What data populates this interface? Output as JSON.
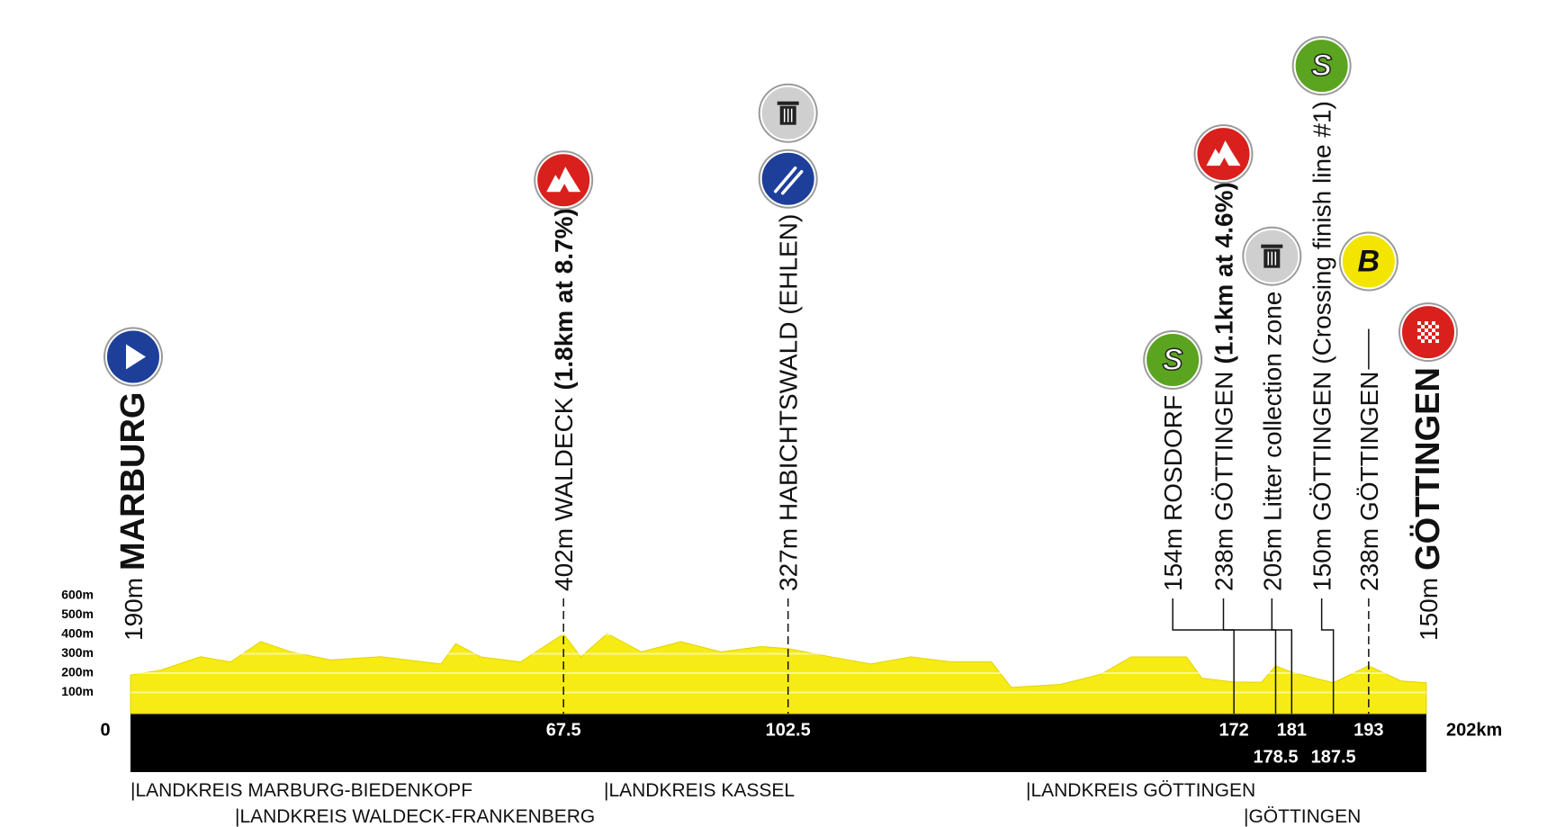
{
  "chart_data": {
    "type": "area",
    "x": [
      0,
      4.7,
      10.9,
      15.6,
      20.3,
      25,
      31.2,
      39,
      48.4,
      50.7,
      54.6,
      60.8,
      67.5,
      70.2,
      74.3,
      79.6,
      85.8,
      92,
      98.3,
      102.5,
      109.2,
      115.4,
      121.7,
      127.9,
      134.2,
      137.3,
      145,
      151.3,
      156,
      164.6,
      167,
      172,
      176.3,
      178.5,
      181,
      187.5,
      193,
      198,
      202
    ],
    "values": [
      190,
      215,
      285,
      258,
      363,
      310,
      268,
      285,
      247,
      352,
      284,
      258,
      402,
      284,
      405,
      310,
      363,
      310,
      337,
      327,
      284,
      247,
      284,
      258,
      258,
      126,
      142,
      195,
      284,
      284,
      174,
      154,
      153,
      238,
      205,
      150,
      238,
      160,
      150
    ],
    "color": "#f6eb14",
    "xlim": [
      0,
      202
    ],
    "xticks": [
      0,
      67.5,
      102.5,
      172,
      178.5,
      181,
      187.5,
      193,
      {
        "value": 202,
        "label": "202km"
      }
    ],
    "ylim": [
      0,
      600
    ],
    "yticks": [
      {
        "value": 100,
        "label": "100m"
      },
      {
        "value": 200,
        "label": "200m"
      },
      {
        "value": 300,
        "label": "300m"
      },
      {
        "value": 400,
        "label": "400m"
      },
      {
        "value": 500,
        "label": "500m"
      },
      {
        "value": 600,
        "label": "600m"
      }
    ],
    "grid": true,
    "waypoints": [
      {
        "km": 0,
        "elevation": "190m",
        "name": "MARBURG",
        "icons": [
          {
            "type": "start"
          }
        ]
      },
      {
        "km": 67.5,
        "elevation": "402m",
        "name": "WALDECK",
        "detail": "(1.8km at 8.7%)",
        "icons": [
          {
            "type": "mountain"
          }
        ]
      },
      {
        "km": 102.5,
        "elevation": "327m",
        "name": "HABICHTSWALD (EHLEN)",
        "icons": [
          {
            "type": "food"
          },
          {
            "type": "litter"
          }
        ]
      },
      {
        "km": 172,
        "elevation": "154m",
        "name": "ROSDORF",
        "icons": [
          {
            "type": "sprint",
            "text": "S"
          }
        ]
      },
      {
        "km": 178.5,
        "elevation": "238m",
        "name": "GÖTTINGEN",
        "detail": "(1.1km at 4.6%)",
        "icons": [
          {
            "type": "mountain"
          }
        ]
      },
      {
        "km": 181,
        "elevation": "205m",
        "name": "Litter collection zone",
        "icons": [
          {
            "type": "litter"
          }
        ]
      },
      {
        "km": 187.5,
        "elevation": "150m",
        "name": "GÖTTINGEN (Crossing finish line #1)",
        "icons": [
          {
            "type": "sprint",
            "text": "S"
          }
        ]
      },
      {
        "km": 193,
        "elevation": "238m",
        "name": "GÖTTINGEN",
        "icons": [
          {
            "type": "bonus",
            "text": "B"
          }
        ]
      },
      {
        "km": 202,
        "elevation": "150m",
        "name": "GÖTTINGEN",
        "icons": [
          {
            "type": "finish"
          }
        ]
      }
    ],
    "regions": [
      "|LANDKREIS MARBURG-BIEDENKOPF",
      "|LANDKREIS WALDECK-FRANKENBERG",
      "|LANDKREIS KASSEL",
      "|LANDKREIS GÖTTINGEN",
      "|GÖTTINGEN"
    ]
  }
}
